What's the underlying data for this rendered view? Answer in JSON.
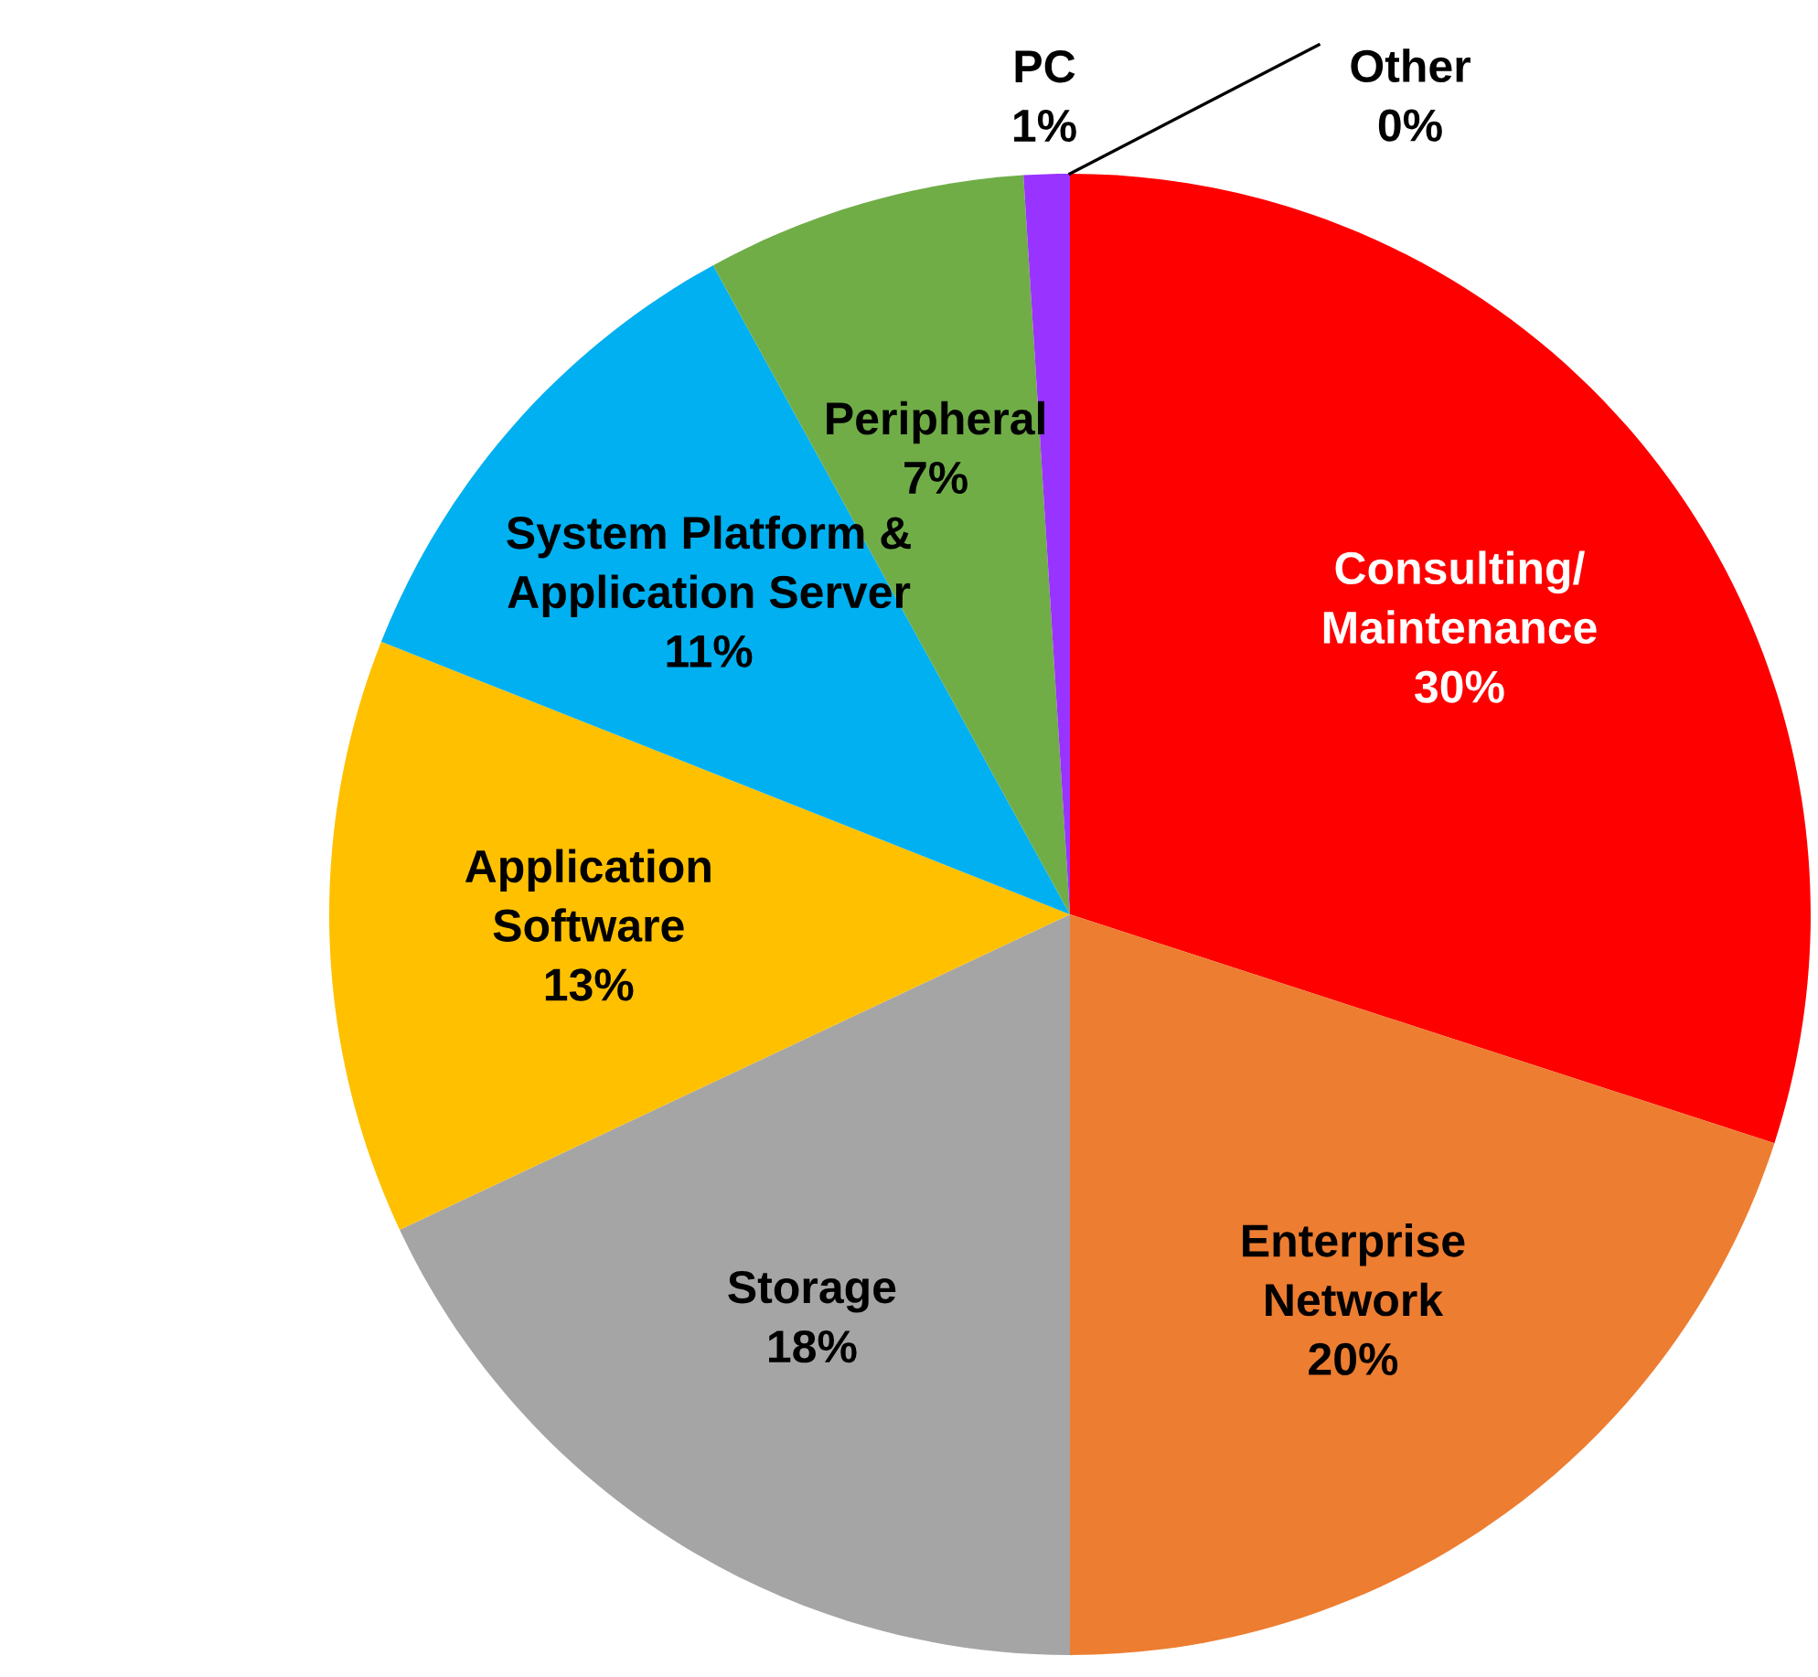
{
  "chart_data": {
    "type": "pie",
    "categories": [
      "Consulting/\nMaintenance",
      "Enterprise\nNetwork",
      "Storage",
      "Application\nSoftware",
      "System Platform &\nApplication Server",
      "Peripheral",
      "PC",
      "Other"
    ],
    "values": [
      30,
      20,
      18,
      13,
      11,
      7,
      1,
      0
    ],
    "value_labels": [
      "30%",
      "20%",
      "18%",
      "13%",
      "11%",
      "7%",
      "1%",
      "0%"
    ],
    "colors": [
      "#ff0000",
      "#ed7d31",
      "#a5a5a5",
      "#ffc000",
      "#00b0f0",
      "#70ad47",
      "#9933ff",
      "#4472c4"
    ],
    "legend": false
  }
}
